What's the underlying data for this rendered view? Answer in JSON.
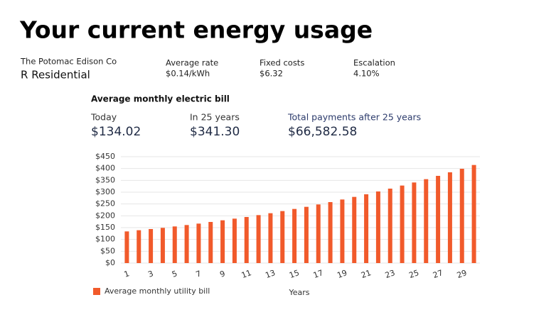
{
  "header": {
    "title": "Your current energy usage"
  },
  "utility": {
    "company": "The Potomac Edison Co",
    "plan": "R Residential"
  },
  "rates": [
    {
      "label": "Average rate",
      "value": "$0.14/kWh"
    },
    {
      "label": "Fixed costs",
      "value": "$6.32"
    },
    {
      "label": "Escalation",
      "value": "4.10%"
    }
  ],
  "summary": {
    "title": "Average monthly electric bill",
    "stats": [
      {
        "label": "Today",
        "value": "$134.02"
      },
      {
        "label": "In 25 years",
        "value": "$341.30"
      },
      {
        "label": "Total payments after 25 years",
        "value": "$66,582.58"
      }
    ]
  },
  "chart_data": {
    "type": "bar",
    "x_label": "Years",
    "categories": [
      1,
      null,
      3,
      null,
      5,
      null,
      7,
      null,
      9,
      null,
      11,
      null,
      13,
      null,
      15,
      null,
      17,
      null,
      19,
      null,
      21,
      null,
      23,
      null,
      25,
      null,
      27,
      null,
      29,
      null
    ],
    "series": [
      {
        "name": "Average monthly utility bill",
        "color": "#f15a2b",
        "values": [
          134,
          139,
          144,
          149,
          155,
          161,
          167,
          174,
          181,
          188,
          195,
          203,
          211,
          220,
          229,
          238,
          248,
          258,
          269,
          280,
          291,
          303,
          315,
          328,
          341,
          355,
          369,
          384,
          399,
          415
        ]
      }
    ],
    "ylim": [
      0,
      450
    ],
    "yticks": [
      {
        "value": 0,
        "label": "$0"
      },
      {
        "value": 50,
        "label": "$50"
      },
      {
        "value": 100,
        "label": "$100"
      },
      {
        "value": 150,
        "label": "$150"
      },
      {
        "value": 200,
        "label": "$200"
      },
      {
        "value": 250,
        "label": "$250"
      },
      {
        "value": 300,
        "label": "$300"
      },
      {
        "value": 350,
        "label": "$350"
      },
      {
        "value": 400,
        "label": "$400"
      },
      {
        "value": 450,
        "label": "$450"
      }
    ],
    "grid": true,
    "legend": "bottom-left"
  }
}
